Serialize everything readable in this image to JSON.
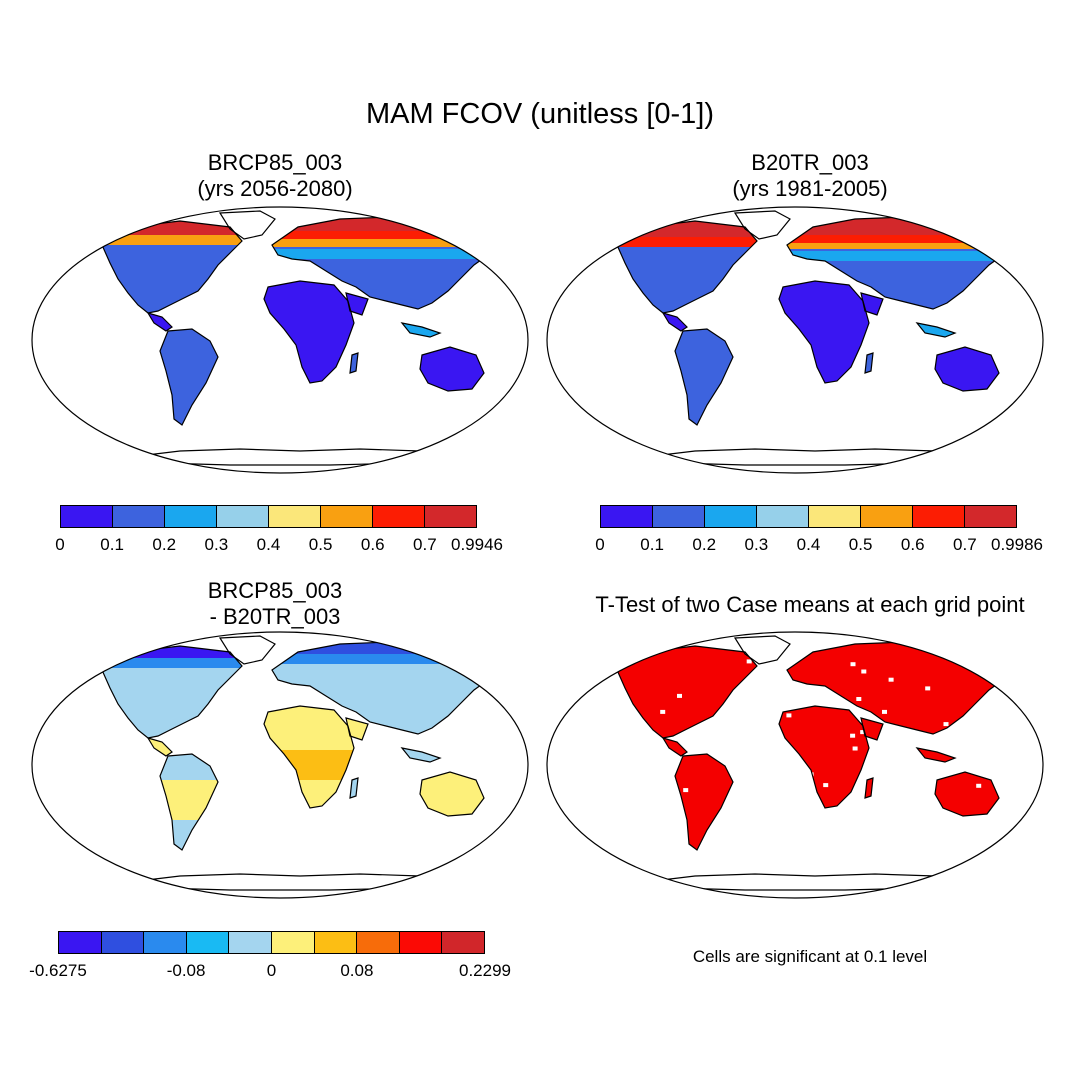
{
  "title": "MAM FCOV (unitless [0-1])",
  "panels": {
    "top_left": {
      "title_line1": "BRCP85_003",
      "title_line2": "(yrs 2056-2080)",
      "colorbar": {
        "colors": [
          "#3a16f2",
          "#3d63de",
          "#1aa7ef",
          "#96d0ea",
          "#fbe77a",
          "#f9a011",
          "#fc1d03",
          "#d3282b"
        ],
        "labels": [
          "0",
          "0.1",
          "0.2",
          "0.3",
          "0.4",
          "0.5",
          "0.6",
          "0.7",
          "0.9946"
        ]
      }
    },
    "top_right": {
      "title_line1": "B20TR_003",
      "title_line2": "(yrs 1981-2005)",
      "colorbar": {
        "colors": [
          "#3a16f2",
          "#3d63de",
          "#1aa7ef",
          "#96d0ea",
          "#fbe77a",
          "#f9a011",
          "#fc1d03",
          "#d3282b"
        ],
        "labels": [
          "0",
          "0.1",
          "0.2",
          "0.3",
          "0.4",
          "0.5",
          "0.6",
          "0.7",
          "0.9986"
        ]
      }
    },
    "bottom_left": {
      "title_line1": "BRCP85_003",
      "title_line2": "- B20TR_003",
      "colorbar": {
        "colors": [
          "#3a16f2",
          "#2f4fe0",
          "#2a8aee",
          "#19baf3",
          "#a4d5ef",
          "#fdf07a",
          "#fcbe14",
          "#f76c0a",
          "#fb0a05",
          "#d1262a"
        ],
        "labels": [
          "-0.6275",
          "-0.08",
          "0",
          "0.08",
          "0.2299"
        ]
      }
    },
    "bottom_right": {
      "title": "T-Test of two Case means at each grid point",
      "note": "Cells are significant at 0.1 level",
      "fill_color": "#f40000"
    }
  }
}
